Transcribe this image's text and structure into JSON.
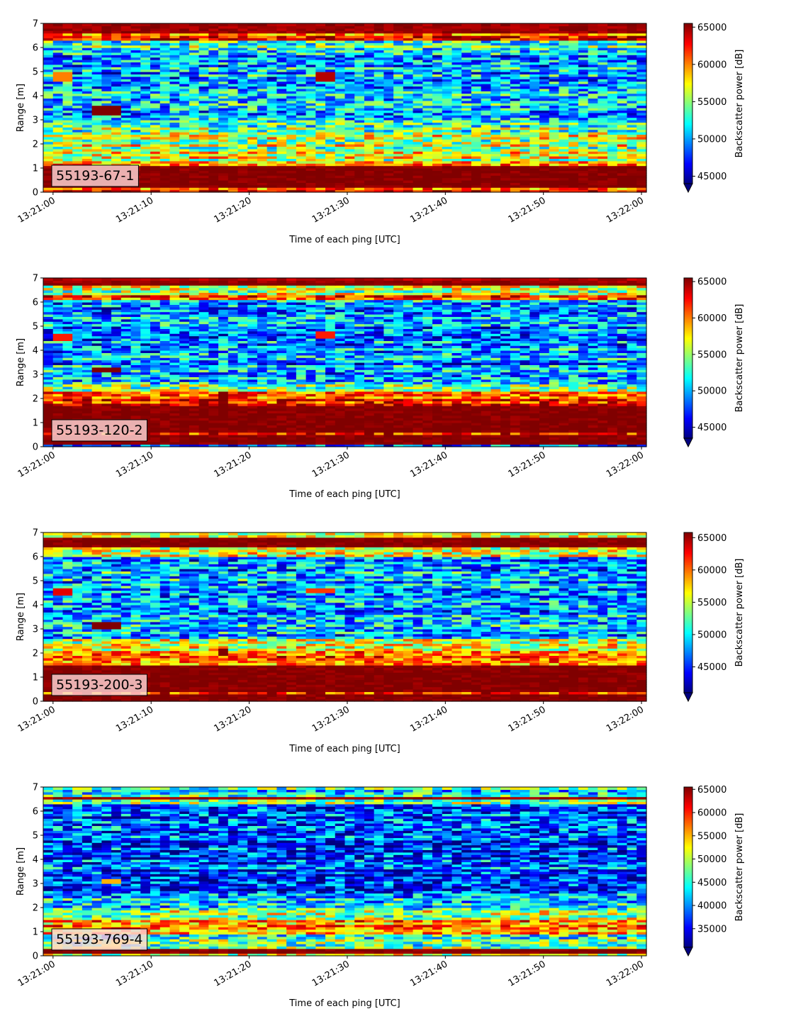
{
  "colormap": "jet",
  "x_axis": {
    "label": "Time of each ping [UTC]",
    "range": [
      "13:21:00",
      "13:22:00"
    ],
    "tick_labels": [
      "13:21:00",
      "13:21:10",
      "13:21:20",
      "13:21:30",
      "13:21:40",
      "13:21:50",
      "13:22:00"
    ]
  },
  "y_axis": {
    "label": "Range [m]",
    "range": [
      0,
      7
    ],
    "tick_labels": [
      "0",
      "1",
      "2",
      "3",
      "4",
      "5",
      "6",
      "7"
    ]
  },
  "colorbar_label": "Backscatter power [dB]",
  "chart_data": [
    {
      "type": "heatmap",
      "panel_label": "55193-67-1",
      "xlabel": "Time of each ping [UTC]",
      "ylabel": "Range [m]",
      "ylim": [
        0,
        7
      ],
      "colorbar": {
        "label": "Backscatter power [dB]",
        "range": [
          44000,
          65500
        ],
        "ticks": [
          45000,
          50000,
          55000,
          60000,
          65000
        ],
        "tick_labels": [
          "45000",
          "50000",
          "55000",
          "60000",
          "65000"
        ]
      },
      "bands": [
        {
          "range_m": [
            0.0,
            0.25
          ],
          "level": 0.85
        },
        {
          "range_m": [
            0.25,
            1.15
          ],
          "level": 1.0
        },
        {
          "range_m": [
            1.15,
            1.35
          ],
          "level": 0.72
        },
        {
          "range_m": [
            1.35,
            1.7
          ],
          "level": 0.6
        },
        {
          "range_m": [
            1.7,
            2.5
          ],
          "level": 0.56
        },
        {
          "range_m": [
            2.5,
            3.0
          ],
          "level": 0.48
        },
        {
          "range_m": [
            3.0,
            6.0
          ],
          "level": 0.3
        },
        {
          "range_m": [
            6.0,
            6.3
          ],
          "level": 0.45
        },
        {
          "range_m": [
            6.3,
            6.6
          ],
          "level": 0.82
        },
        {
          "range_m": [
            6.6,
            7.0
          ],
          "level": 0.97
        }
      ],
      "patches": [
        {
          "time": [
            "13:21:04",
            "13:21:07"
          ],
          "range_m": [
            3.25,
            3.65
          ],
          "level": 1.0
        },
        {
          "time": [
            "13:21:00",
            "13:21:02"
          ],
          "range_m": [
            4.6,
            5.0
          ],
          "level": 0.75
        },
        {
          "time": [
            "13:21:27",
            "13:21:29"
          ],
          "range_m": [
            4.6,
            5.0
          ],
          "level": 0.95
        }
      ]
    },
    {
      "type": "heatmap",
      "panel_label": "55193-120-2",
      "xlabel": "Time of each ping [UTC]",
      "ylabel": "Range [m]",
      "ylim": [
        0,
        7
      ],
      "colorbar": {
        "label": "Backscatter power [dB]",
        "range": [
          43500,
          65500
        ],
        "ticks": [
          45000,
          50000,
          55000,
          60000,
          65000
        ],
        "tick_labels": [
          "45000",
          "50000",
          "55000",
          "60000",
          "65000"
        ]
      },
      "bands": [
        {
          "range_m": [
            0.0,
            0.15
          ],
          "level": 0.3
        },
        {
          "range_m": [
            0.15,
            0.5
          ],
          "level": 1.0
        },
        {
          "range_m": [
            0.5,
            0.65
          ],
          "level": 0.8
        },
        {
          "range_m": [
            0.65,
            1.75
          ],
          "level": 1.0
        },
        {
          "range_m": [
            1.75,
            2.05
          ],
          "level": 0.9
        },
        {
          "range_m": [
            2.05,
            2.3
          ],
          "level": 0.82
        },
        {
          "range_m": [
            2.3,
            2.6
          ],
          "level": 0.45
        },
        {
          "range_m": [
            2.6,
            6.1
          ],
          "level": 0.28
        },
        {
          "range_m": [
            6.1,
            6.35
          ],
          "level": 0.85
        },
        {
          "range_m": [
            6.35,
            6.7
          ],
          "level": 0.55
        },
        {
          "range_m": [
            6.7,
            7.0
          ],
          "level": 0.95
        }
      ],
      "patches": [
        {
          "time": [
            "13:21:04",
            "13:21:07"
          ],
          "range_m": [
            3.1,
            3.35
          ],
          "level": 1.0
        },
        {
          "time": [
            "13:21:00",
            "13:21:02"
          ],
          "range_m": [
            4.4,
            4.75
          ],
          "level": 0.85
        },
        {
          "time": [
            "13:21:17",
            "13:21:18"
          ],
          "range_m": [
            1.95,
            2.3
          ],
          "level": 1.0
        },
        {
          "time": [
            "13:21:27",
            "13:21:29"
          ],
          "range_m": [
            4.55,
            4.8
          ],
          "level": 0.85
        },
        {
          "time": [
            "13:21:50",
            "13:21:51"
          ],
          "range_m": [
            1.6,
            1.9
          ],
          "level": 1.0
        }
      ]
    },
    {
      "type": "heatmap",
      "panel_label": "55193-200-3",
      "xlabel": "Time of each ping [UTC]",
      "ylabel": "Range [m]",
      "ylim": [
        0,
        7
      ],
      "colorbar": {
        "label": "Backscatter power [dB]",
        "range": [
          41000,
          65800
        ],
        "ticks": [
          45000,
          50000,
          55000,
          60000,
          65000
        ],
        "tick_labels": [
          "45000",
          "50000",
          "55000",
          "60000",
          "65000"
        ]
      },
      "bands": [
        {
          "range_m": [
            0.0,
            0.3
          ],
          "level": 1.0
        },
        {
          "range_m": [
            0.3,
            0.4
          ],
          "level": 0.82
        },
        {
          "range_m": [
            0.4,
            1.55
          ],
          "level": 1.0
        },
        {
          "range_m": [
            1.55,
            1.8
          ],
          "level": 0.7
        },
        {
          "range_m": [
            1.8,
            2.1
          ],
          "level": 0.82
        },
        {
          "range_m": [
            2.1,
            2.6
          ],
          "level": 0.55
        },
        {
          "range_m": [
            2.6,
            6.0
          ],
          "level": 0.3
        },
        {
          "range_m": [
            6.0,
            6.45
          ],
          "level": 0.52
        },
        {
          "range_m": [
            6.45,
            6.8
          ],
          "level": 1.0
        },
        {
          "range_m": [
            6.8,
            7.0
          ],
          "level": 0.65
        }
      ],
      "patches": [
        {
          "time": [
            "13:21:04",
            "13:21:07"
          ],
          "range_m": [
            3.05,
            3.3
          ],
          "level": 1.0
        },
        {
          "time": [
            "13:21:00",
            "13:21:02"
          ],
          "range_m": [
            4.4,
            4.75
          ],
          "level": 0.9
        },
        {
          "time": [
            "13:21:17",
            "13:21:18"
          ],
          "range_m": [
            1.95,
            2.25
          ],
          "level": 1.0
        },
        {
          "time": [
            "13:21:26",
            "13:21:29"
          ],
          "range_m": [
            4.5,
            4.75
          ],
          "level": 0.82
        }
      ]
    },
    {
      "type": "heatmap",
      "panel_label": "55193-769-4",
      "xlabel": "Time of each ping [UTC]",
      "ylabel": "Range [m]",
      "ylim": [
        0,
        7
      ],
      "colorbar": {
        "label": "Backscatter power [dB]",
        "range": [
          31000,
          65500
        ],
        "ticks": [
          35000,
          40000,
          45000,
          50000,
          55000,
          60000,
          65000
        ],
        "tick_labels": [
          "35000",
          "40000",
          "45000",
          "50000",
          "55000",
          "60000",
          "65000"
        ]
      },
      "bands": [
        {
          "range_m": [
            0.0,
            0.15
          ],
          "level": 0.55
        },
        {
          "range_m": [
            0.15,
            0.35
          ],
          "level": 1.0
        },
        {
          "range_m": [
            0.35,
            0.6
          ],
          "level": 0.5
        },
        {
          "range_m": [
            0.6,
            0.95
          ],
          "level": 0.45
        },
        {
          "range_m": [
            0.95,
            1.5
          ],
          "level": 0.72
        },
        {
          "range_m": [
            1.5,
            1.9
          ],
          "level": 0.5
        },
        {
          "range_m": [
            1.9,
            2.6
          ],
          "level": 0.35
        },
        {
          "range_m": [
            2.6,
            6.3
          ],
          "level": 0.18
        },
        {
          "range_m": [
            6.3,
            6.5
          ],
          "level": 0.45
        },
        {
          "range_m": [
            6.5,
            6.65
          ],
          "level": 0.98
        },
        {
          "range_m": [
            6.65,
            7.0
          ],
          "level": 0.4
        }
      ],
      "patches": [
        {
          "time": [
            "13:21:05",
            "13:21:07"
          ],
          "range_m": [
            3.0,
            3.25
          ],
          "level": 0.7
        }
      ]
    }
  ]
}
